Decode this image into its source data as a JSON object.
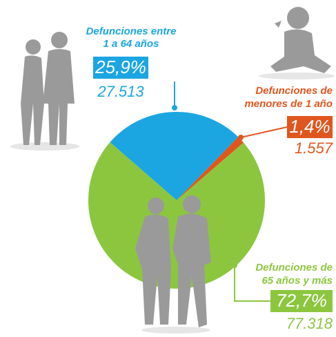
{
  "chart_data": {
    "type": "pie",
    "categories": [
      [
        "Defunciones entre",
        "1 a 64 años"
      ],
      [
        "Defunciones de",
        "menores de 1 año"
      ],
      [
        "Defunciones de",
        "65 años y más"
      ]
    ],
    "values": [
      25.9,
      1.4,
      72.7
    ],
    "value_labels": [
      "25,9%",
      "1,4%",
      "72,7%"
    ],
    "counts": [
      27513,
      1557,
      77318
    ],
    "count_labels": [
      "27.513",
      "1.557",
      "77.318"
    ],
    "colors": [
      "#1ba6e1",
      "#e0561f",
      "#8cc63f"
    ]
  }
}
